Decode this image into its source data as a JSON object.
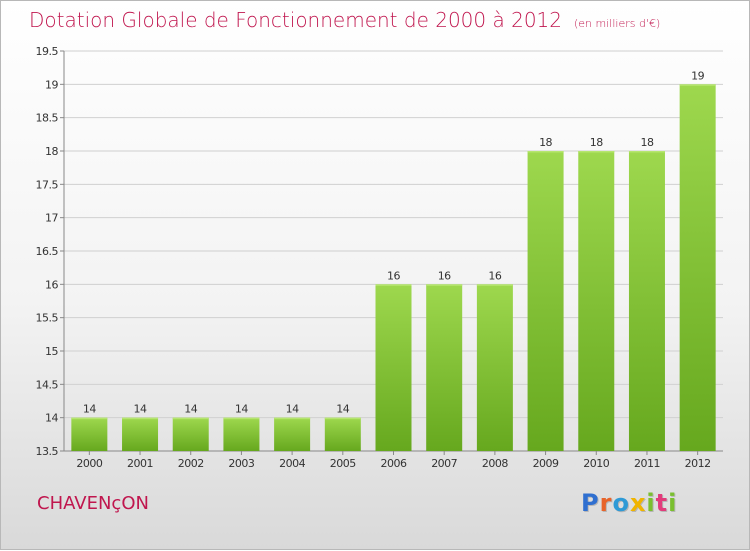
{
  "title": "Dotation Globale de Fonctionnement de 2000 à 2012",
  "subtitle": "(en milliers d'€)",
  "commune": "CHAVENçON",
  "logo": {
    "letters": [
      {
        "char": "P",
        "color": "#2f6fd0"
      },
      {
        "char": "r",
        "color": "#e8642a"
      },
      {
        "char": "o",
        "color": "#2f9ad6"
      },
      {
        "char": "x",
        "color": "#f0b400"
      },
      {
        "char": "i",
        "color": "#7abf2f"
      },
      {
        "char": "t",
        "color": "#e23b7b"
      },
      {
        "char": "i",
        "color": "#7abf2f"
      }
    ]
  },
  "colors": {
    "title": "#c0164e",
    "bar_light": "#9ed84e",
    "bar_dark": "#66a81e",
    "grid": "#d0d0d0",
    "axis_text": "#333333"
  },
  "chart_data": {
    "type": "bar",
    "categories": [
      "2000",
      "2001",
      "2002",
      "2003",
      "2004",
      "2005",
      "2006",
      "2007",
      "2008",
      "2009",
      "2010",
      "2011",
      "2012"
    ],
    "values": [
      14,
      14,
      14,
      14,
      14,
      14,
      16,
      16,
      16,
      18,
      18,
      18,
      19
    ],
    "data_labels": [
      "14",
      "14",
      "14",
      "14",
      "14",
      "14",
      "16",
      "16",
      "16",
      "18",
      "18",
      "18",
      "19"
    ],
    "ylim": [
      13.5,
      19.5
    ],
    "yticks": [
      13.5,
      14,
      14.5,
      15,
      15.5,
      16,
      16.5,
      17,
      17.5,
      18,
      18.5,
      19,
      19.5
    ],
    "ytick_labels": [
      "13.5",
      "14",
      "14.5",
      "15",
      "15.5",
      "16",
      "16.5",
      "17",
      "17.5",
      "18",
      "18.5",
      "19",
      "19.5"
    ],
    "xlabel": "",
    "ylabel": "",
    "grid": true,
    "legend": "none"
  }
}
